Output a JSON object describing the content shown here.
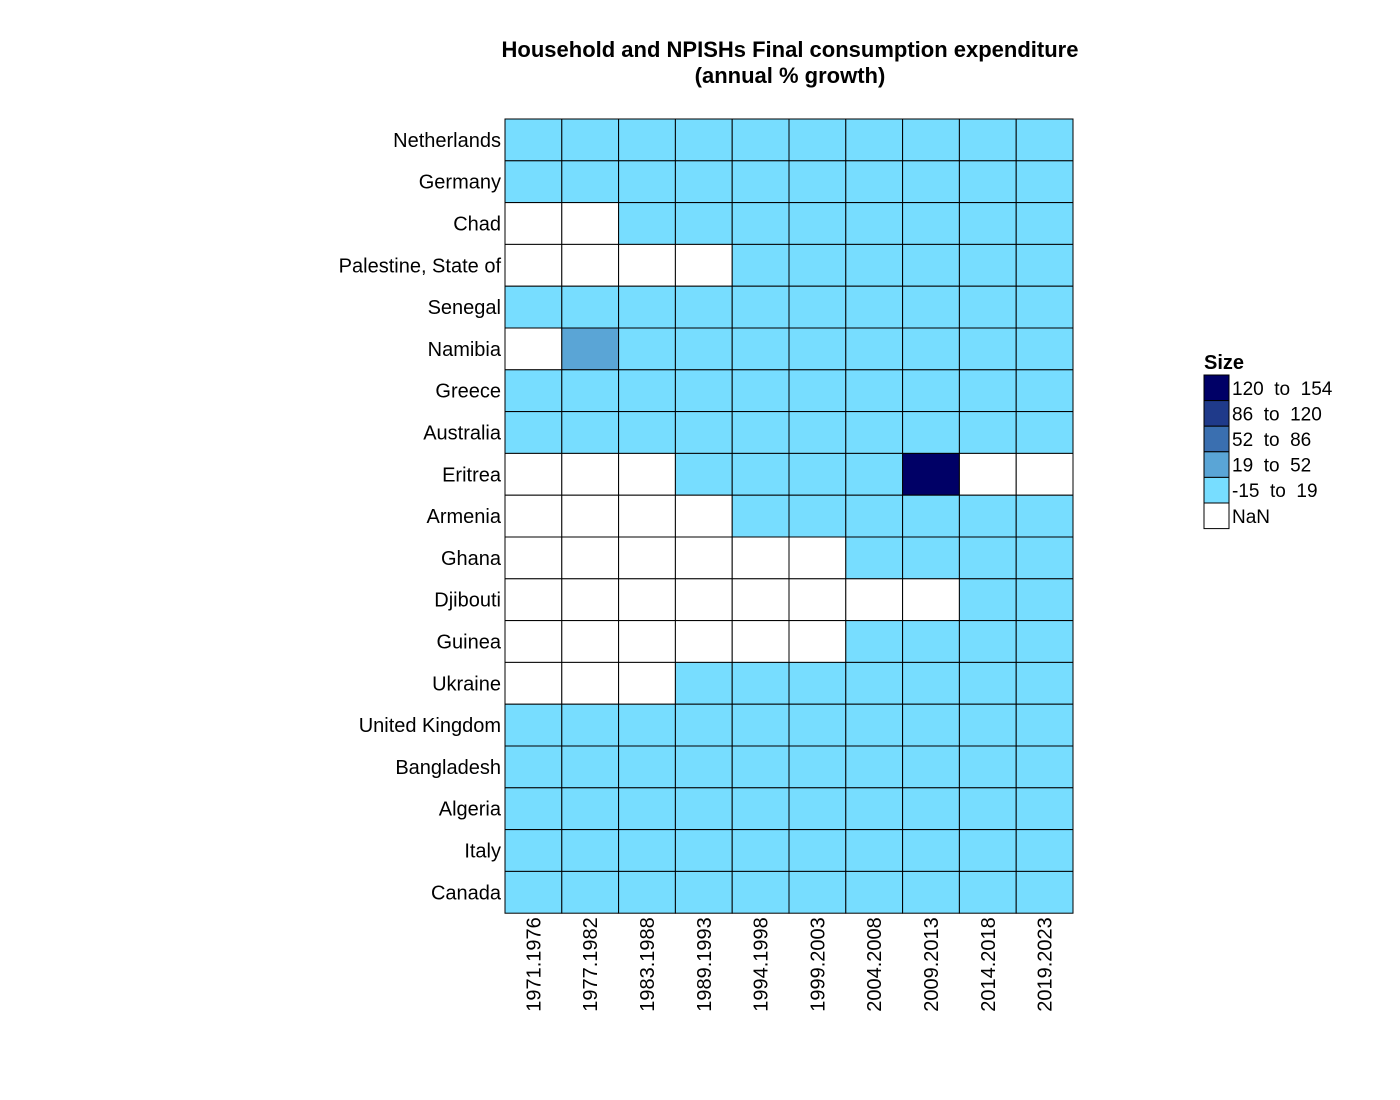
{
  "chart_data": {
    "type": "heatmap",
    "title": "Household and NPISHs Final consumption expenditure",
    "subtitle": "(annual % growth)",
    "rows": [
      "Netherlands",
      "Germany",
      "Chad",
      "Palestine, State of",
      "Senegal",
      "Namibia",
      "Greece",
      "Australia",
      "Eritrea",
      "Armenia",
      "Ghana",
      "Djibouti",
      "Guinea",
      "Ukraine",
      "United Kingdom",
      "Bangladesh",
      "Algeria",
      "Italy",
      "Canada"
    ],
    "columns": [
      "1971.1976",
      "1977.1982",
      "1983.1988",
      "1989.1993",
      "1994.1998",
      "1999.2003",
      "2004.2008",
      "2009.2013",
      "2014.2018",
      "2019.2023"
    ],
    "cells": [
      [
        "-15 to 19",
        "-15 to 19",
        "-15 to 19",
        "-15 to 19",
        "-15 to 19",
        "-15 to 19",
        "-15 to 19",
        "-15 to 19",
        "-15 to 19",
        "-15 to 19"
      ],
      [
        "-15 to 19",
        "-15 to 19",
        "-15 to 19",
        "-15 to 19",
        "-15 to 19",
        "-15 to 19",
        "-15 to 19",
        "-15 to 19",
        "-15 to 19",
        "-15 to 19"
      ],
      [
        "NaN",
        "NaN",
        "-15 to 19",
        "-15 to 19",
        "-15 to 19",
        "-15 to 19",
        "-15 to 19",
        "-15 to 19",
        "-15 to 19",
        "-15 to 19"
      ],
      [
        "NaN",
        "NaN",
        "NaN",
        "NaN",
        "-15 to 19",
        "-15 to 19",
        "-15 to 19",
        "-15 to 19",
        "-15 to 19",
        "-15 to 19"
      ],
      [
        "-15 to 19",
        "-15 to 19",
        "-15 to 19",
        "-15 to 19",
        "-15 to 19",
        "-15 to 19",
        "-15 to 19",
        "-15 to 19",
        "-15 to 19",
        "-15 to 19"
      ],
      [
        "NaN",
        "19 to 52",
        "-15 to 19",
        "-15 to 19",
        "-15 to 19",
        "-15 to 19",
        "-15 to 19",
        "-15 to 19",
        "-15 to 19",
        "-15 to 19"
      ],
      [
        "-15 to 19",
        "-15 to 19",
        "-15 to 19",
        "-15 to 19",
        "-15 to 19",
        "-15 to 19",
        "-15 to 19",
        "-15 to 19",
        "-15 to 19",
        "-15 to 19"
      ],
      [
        "-15 to 19",
        "-15 to 19",
        "-15 to 19",
        "-15 to 19",
        "-15 to 19",
        "-15 to 19",
        "-15 to 19",
        "-15 to 19",
        "-15 to 19",
        "-15 to 19"
      ],
      [
        "NaN",
        "NaN",
        "NaN",
        "-15 to 19",
        "-15 to 19",
        "-15 to 19",
        "-15 to 19",
        "120 to 154",
        "NaN",
        "NaN"
      ],
      [
        "NaN",
        "NaN",
        "NaN",
        "NaN",
        "-15 to 19",
        "-15 to 19",
        "-15 to 19",
        "-15 to 19",
        "-15 to 19",
        "-15 to 19"
      ],
      [
        "NaN",
        "NaN",
        "NaN",
        "NaN",
        "NaN",
        "NaN",
        "-15 to 19",
        "-15 to 19",
        "-15 to 19",
        "-15 to 19"
      ],
      [
        "NaN",
        "NaN",
        "NaN",
        "NaN",
        "NaN",
        "NaN",
        "NaN",
        "NaN",
        "-15 to 19",
        "-15 to 19"
      ],
      [
        "NaN",
        "NaN",
        "NaN",
        "NaN",
        "NaN",
        "NaN",
        "-15 to 19",
        "-15 to 19",
        "-15 to 19",
        "-15 to 19"
      ],
      [
        "NaN",
        "NaN",
        "NaN",
        "-15 to 19",
        "-15 to 19",
        "-15 to 19",
        "-15 to 19",
        "-15 to 19",
        "-15 to 19",
        "-15 to 19"
      ],
      [
        "-15 to 19",
        "-15 to 19",
        "-15 to 19",
        "-15 to 19",
        "-15 to 19",
        "-15 to 19",
        "-15 to 19",
        "-15 to 19",
        "-15 to 19",
        "-15 to 19"
      ],
      [
        "-15 to 19",
        "-15 to 19",
        "-15 to 19",
        "-15 to 19",
        "-15 to 19",
        "-15 to 19",
        "-15 to 19",
        "-15 to 19",
        "-15 to 19",
        "-15 to 19"
      ],
      [
        "-15 to 19",
        "-15 to 19",
        "-15 to 19",
        "-15 to 19",
        "-15 to 19",
        "-15 to 19",
        "-15 to 19",
        "-15 to 19",
        "-15 to 19",
        "-15 to 19"
      ],
      [
        "-15 to 19",
        "-15 to 19",
        "-15 to 19",
        "-15 to 19",
        "-15 to 19",
        "-15 to 19",
        "-15 to 19",
        "-15 to 19",
        "-15 to 19",
        "-15 to 19"
      ],
      [
        "-15 to 19",
        "-15 to 19",
        "-15 to 19",
        "-15 to 19",
        "-15 to 19",
        "-15 to 19",
        "-15 to 19",
        "-15 to 19",
        "-15 to 19",
        "-15 to 19"
      ]
    ],
    "legend": {
      "title": "Size",
      "placement": "right",
      "bins": [
        {
          "label": "120  to  154",
          "key": "120 to 154",
          "color": "#000066"
        },
        {
          "label": "86  to  120",
          "key": "86 to 120",
          "color": "#1f3a8a"
        },
        {
          "label": "52  to  86",
          "key": "52 to 86",
          "color": "#3a6fb0"
        },
        {
          "label": "19  to  52",
          "key": "19 to 52",
          "color": "#5aa5d6"
        },
        {
          "label": "-15  to  19",
          "key": "-15 to 19",
          "color": "#77ddff"
        },
        {
          "label": "NaN",
          "key": "NaN",
          "color": "#ffffff"
        }
      ]
    }
  }
}
